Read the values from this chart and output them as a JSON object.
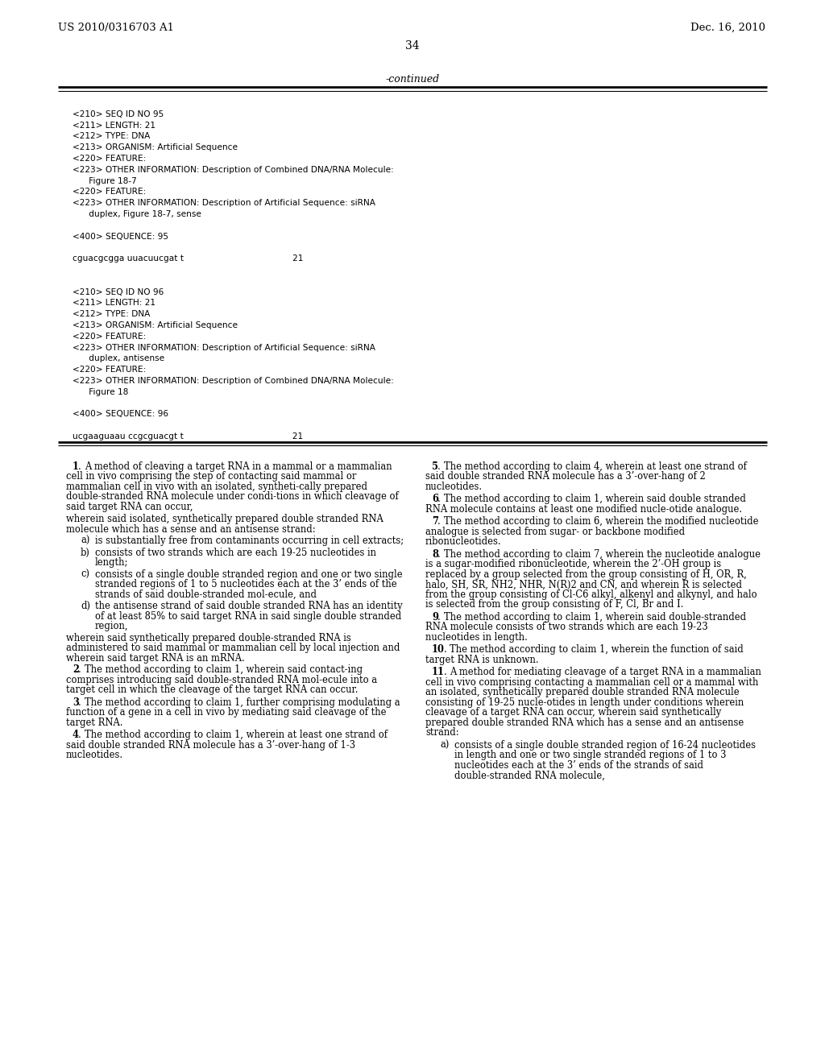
{
  "background_color": "#ffffff",
  "header_left": "US 2010/0316703 A1",
  "header_right": "Dec. 16, 2010",
  "page_number": "34",
  "continued_label": "-continued",
  "mono_lines": [
    "",
    "<210> SEQ ID NO 95",
    "<211> LENGTH: 21",
    "<212> TYPE: DNA",
    "<213> ORGANISM: Artificial Sequence",
    "<220> FEATURE:",
    "<223> OTHER INFORMATION: Description of Combined DNA/RNA Molecule:",
    "      Figure 18-7",
    "<220> FEATURE:",
    "<223> OTHER INFORMATION: Description of Artificial Sequence: siRNA",
    "      duplex, Figure 18-7, sense",
    "",
    "<400> SEQUENCE: 95",
    "",
    "cguacgcgga uuacuucgat t                                        21",
    "",
    "",
    "<210> SEQ ID NO 96",
    "<211> LENGTH: 21",
    "<212> TYPE: DNA",
    "<213> ORGANISM: Artificial Sequence",
    "<220> FEATURE:",
    "<223> OTHER INFORMATION: Description of Artificial Sequence: siRNA",
    "      duplex, antisense",
    "<220> FEATURE:",
    "<223> OTHER INFORMATION: Description of Combined DNA/RNA Molecule:",
    "      Figure 18",
    "",
    "<400> SEQUENCE: 96",
    "",
    "ucgaaguaau ccgcguacgt t                                        21"
  ],
  "col1_paragraphs": [
    {
      "kind": "claim_start",
      "num": "1",
      "text": ". A method of cleaving a target RNA in a mammal or a mammalian cell in vivo comprising the step of contacting said mammal or mammalian cell in vivo with an isolated, syntheti-cally prepared double-stranded RNA molecule under condi-tions in which cleavage of said target RNA can occur,"
    },
    {
      "kind": "body",
      "text": "wherein said isolated, synthetically prepared double stranded RNA molecule which has a sense and an antisense strand:"
    },
    {
      "kind": "subitem",
      "label": "a)",
      "text": "is substantially free from contaminants occurring in cell extracts;"
    },
    {
      "kind": "subitem",
      "label": "b)",
      "text": "consists of two strands which are each 19-25 nucleotides in length;"
    },
    {
      "kind": "subitem",
      "label": "c)",
      "text": "consists of a single double stranded region and one or two single stranded regions of 1 to 5 nucleotides each at the 3’ ends of the strands of said double-stranded mol-ecule, and"
    },
    {
      "kind": "subitem",
      "label": "d)",
      "text": "the antisense strand of said double stranded RNA has an identity of at least 85% to said target RNA in said single double stranded region,"
    },
    {
      "kind": "body",
      "text": "wherein said synthetically prepared double-stranded RNA is administered to said mammal or mammalian cell by local injection and wherein said target RNA is an mRNA."
    },
    {
      "kind": "claim_start",
      "num": "2",
      "text": ". The method according to claim 1, wherein said contact-ing comprises introducing said double-stranded RNA mol-ecule into a target cell in which the cleavage of the target RNA can occur."
    },
    {
      "kind": "claim_start",
      "num": "3",
      "text": ". The method according to claim 1, further comprising modulating a function of a gene in a cell in vivo by mediating said cleavage of the target RNA."
    },
    {
      "kind": "claim_start",
      "num": "4",
      "text": ". The method according to claim 1, wherein at least one strand of said double stranded RNA molecule has a 3’-over-hang of 1-3 nucleotides."
    }
  ],
  "col2_paragraphs": [
    {
      "kind": "claim_start",
      "num": "5",
      "text": ". The method according to claim 4, wherein at least one strand of said double stranded RNA molecule has a 3’-over-hang of 2 nucleotides."
    },
    {
      "kind": "claim_start",
      "num": "6",
      "text": ". The method according to claim 1, wherein said double stranded RNA molecule contains at least one modified nucle-otide analogue."
    },
    {
      "kind": "claim_start",
      "num": "7",
      "text": ". The method according to claim 6, wherein the modified nucleotide analogue is selected from sugar- or backbone modified ribonucleotides."
    },
    {
      "kind": "claim_start",
      "num": "8",
      "text": ". The method according to claim 7, wherein the nucleotide analogue is a sugar-modified ribonucleotide, wherein the 2’-OH group is replaced by a group selected from the group consisting of H, OR, R, halo, SH, SR, NH2, NHR, N(R)2 and CN, and wherein R is selected from the group consisting of Cl-C6 alkyl, alkenyl and alkynyl, and halo is selected from the group consisting of F, Cl, Br and I."
    },
    {
      "kind": "claim_start",
      "num": "9",
      "text": ". The method according to claim 1, wherein said double-stranded RNA molecule consists of two strands which are each 19-23 nucleotides in length."
    },
    {
      "kind": "claim_start",
      "num": "10",
      "text": ". The method according to claim 1, wherein the function of said target RNA is unknown."
    },
    {
      "kind": "claim_start",
      "num": "11",
      "text": ". A method for mediating cleavage of a target RNA in a mammalian cell in vivo comprising contacting a mammalian cell or a mammal with an isolated, synthetically prepared double stranded RNA molecule consisting of 19-25 nucle-otides in length under conditions wherein cleavage of a target RNA can occur, wherein said synthetically prepared double stranded RNA which has a sense and an antisense strand:"
    },
    {
      "kind": "subitem",
      "label": "a)",
      "text": "consists of a single double stranded region of 16-24 nucleotides in length and one or two single stranded regions of 1 to 3 nucleotides each at the 3’ ends of the strands of said double-stranded RNA molecule,"
    }
  ]
}
